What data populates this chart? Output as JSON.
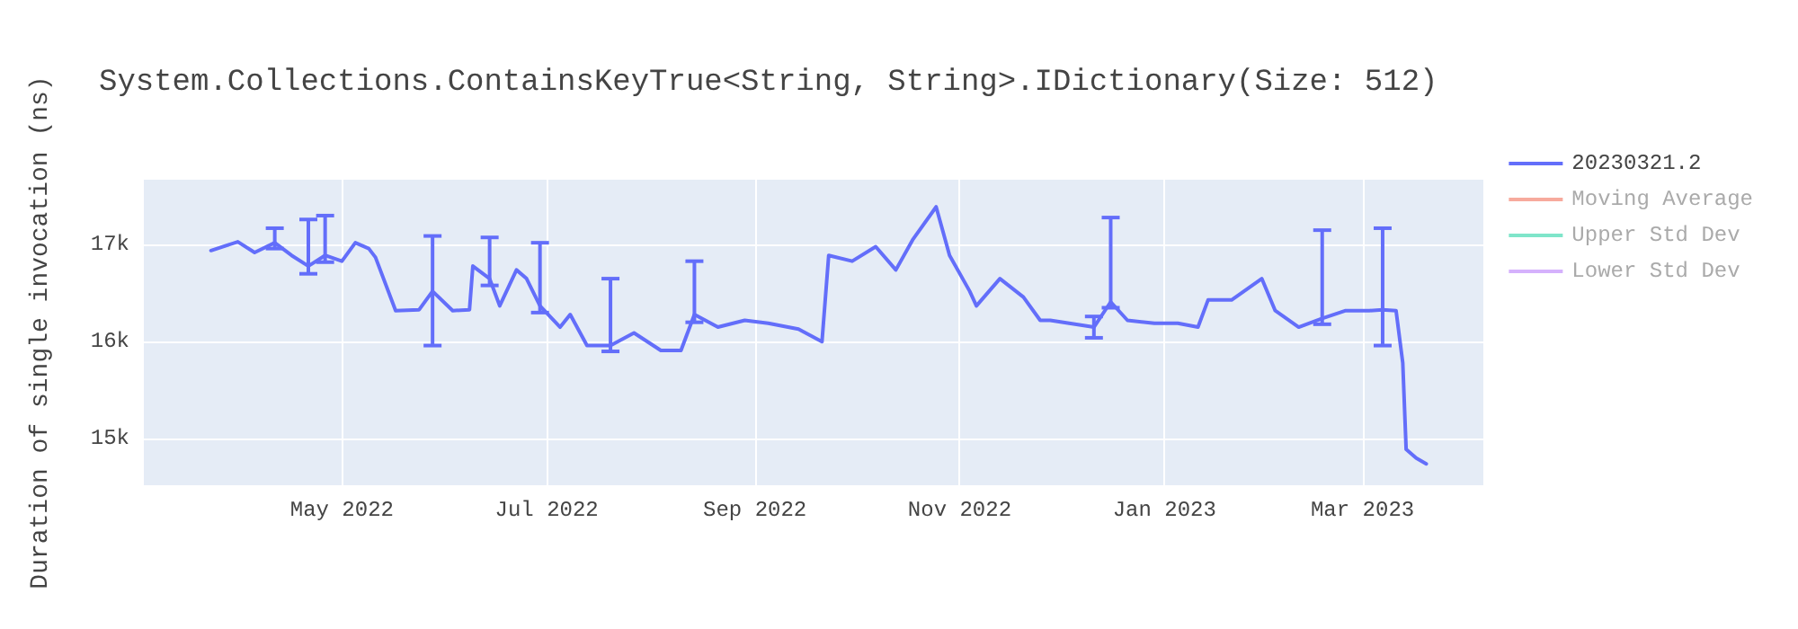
{
  "chart_data": {
    "type": "line",
    "title": "System.Collections.ContainsKeyTrue<String, String>.IDictionary(Size: 512)",
    "ylabel": "Duration of single invocation (ns)",
    "x": [
      "2022-03-23",
      "2022-03-31",
      "2022-04-05",
      "2022-04-11",
      "2022-04-16",
      "2022-04-21",
      "2022-04-26",
      "2022-05-01",
      "2022-05-05",
      "2022-05-09",
      "2022-05-11",
      "2022-05-17",
      "2022-05-24",
      "2022-05-28",
      "2022-06-03",
      "2022-06-08",
      "2022-06-09",
      "2022-06-14",
      "2022-06-17",
      "2022-06-22",
      "2022-06-25",
      "2022-06-29",
      "2022-07-05",
      "2022-07-08",
      "2022-07-13",
      "2022-07-20",
      "2022-07-27",
      "2022-08-04",
      "2022-08-10",
      "2022-08-14",
      "2022-08-21",
      "2022-08-29",
      "2022-09-05",
      "2022-09-14",
      "2022-09-21",
      "2022-09-23",
      "2022-09-30",
      "2022-10-07",
      "2022-10-13",
      "2022-10-18",
      "2022-10-25",
      "2022-10-29",
      "2022-11-04",
      "2022-11-06",
      "2022-11-13",
      "2022-11-20",
      "2022-11-25",
      "2022-11-28",
      "2022-12-11",
      "2022-12-16",
      "2022-12-21",
      "2022-12-29",
      "2023-01-05",
      "2023-01-11",
      "2023-01-14",
      "2023-01-21",
      "2023-01-30",
      "2023-02-03",
      "2023-02-10",
      "2023-02-17",
      "2023-02-24",
      "2023-03-03",
      "2023-03-07",
      "2023-03-11",
      "2023-03-13",
      "2023-03-14",
      "2023-03-17",
      "2023-03-20"
    ],
    "series": [
      {
        "name": "20230321.2",
        "color": "#636efa",
        "values": [
          16940,
          17030,
          16920,
          17020,
          16890,
          16780,
          16890,
          16830,
          17020,
          16960,
          16870,
          16320,
          16330,
          16520,
          16320,
          16330,
          16780,
          16650,
          16370,
          16740,
          16650,
          16370,
          16150,
          16280,
          15960,
          15960,
          16090,
          15910,
          15910,
          16280,
          16150,
          16220,
          16190,
          16130,
          16000,
          16890,
          16830,
          16980,
          16740,
          17050,
          17390,
          16890,
          16520,
          16370,
          16650,
          16460,
          16220,
          16220,
          16150,
          16410,
          16220,
          16190,
          16190,
          16150,
          16430,
          16430,
          16650,
          16320,
          16150,
          16240,
          16320,
          16320,
          16330,
          16320,
          15780,
          14890,
          14800,
          14740
        ],
        "errors": [
          null,
          null,
          null,
          [
            16960,
            17170
          ],
          null,
          [
            16700,
            17260
          ],
          [
            16820,
            17300
          ],
          null,
          null,
          null,
          null,
          null,
          null,
          [
            15960,
            17090
          ],
          null,
          null,
          null,
          [
            16580,
            17075
          ],
          null,
          null,
          null,
          [
            16300,
            17020
          ],
          null,
          null,
          null,
          [
            15900,
            16650
          ],
          null,
          null,
          null,
          [
            16200,
            16830
          ],
          null,
          null,
          null,
          null,
          null,
          null,
          null,
          null,
          null,
          null,
          null,
          null,
          null,
          null,
          null,
          null,
          null,
          null,
          [
            16040,
            16260
          ],
          [
            16350,
            17280
          ],
          null,
          null,
          null,
          null,
          null,
          null,
          null,
          null,
          null,
          [
            16180,
            17150
          ],
          null,
          null,
          [
            15960,
            17170
          ],
          null,
          null,
          null,
          null,
          null
        ]
      },
      {
        "name": "Moving Average",
        "color": "#ef553b",
        "values": [
          null,
          null,
          null,
          null,
          null,
          null,
          null,
          null,
          null,
          null,
          null,
          null,
          null,
          null,
          null,
          null,
          null,
          null,
          null,
          null,
          null,
          null,
          null,
          null,
          null,
          null,
          null,
          null,
          null,
          null,
          null,
          null,
          null,
          null,
          null,
          null,
          null,
          null,
          null,
          null,
          null,
          null,
          null,
          null,
          null,
          null,
          null,
          null,
          null,
          null,
          null,
          null,
          null,
          null,
          null,
          null,
          null,
          null,
          null,
          null,
          null,
          null,
          null,
          null,
          null,
          null,
          null,
          null
        ]
      },
      {
        "name": "Upper Std Dev",
        "color": "#00cc96",
        "values": [
          null,
          null,
          null,
          null,
          null,
          null,
          null,
          null,
          null,
          null,
          null,
          null,
          null,
          null,
          null,
          null,
          null,
          null,
          null,
          null,
          null,
          null,
          null,
          null,
          null,
          null,
          null,
          null,
          null,
          null,
          null,
          null,
          null,
          null,
          null,
          null,
          null,
          null,
          null,
          null,
          null,
          null,
          null,
          null,
          null,
          null,
          null,
          null,
          null,
          null,
          null,
          null,
          null,
          null,
          null,
          null,
          null,
          null,
          null,
          null,
          null,
          null,
          null,
          null,
          null,
          null,
          null,
          null
        ]
      },
      {
        "name": "Lower Std Dev",
        "color": "#ab63fa",
        "values": [
          null,
          null,
          null,
          null,
          null,
          null,
          null,
          null,
          null,
          null,
          null,
          null,
          null,
          null,
          null,
          null,
          null,
          null,
          null,
          null,
          null,
          null,
          null,
          null,
          null,
          null,
          null,
          null,
          null,
          null,
          null,
          null,
          null,
          null,
          null,
          null,
          null,
          null,
          null,
          null,
          null,
          null,
          null,
          null,
          null,
          null,
          null,
          null,
          null,
          null,
          null,
          null,
          null,
          null,
          null,
          null,
          null,
          null,
          null,
          null,
          null,
          null,
          null,
          null,
          null,
          null,
          null,
          null
        ]
      }
    ],
    "xlim": [
      "2022-03-03",
      "2023-04-06"
    ],
    "xticks": [
      {
        "value": "2022-05-01",
        "label": "May 2022"
      },
      {
        "value": "2022-07-01",
        "label": "Jul 2022"
      },
      {
        "value": "2022-09-01",
        "label": "Sep 2022"
      },
      {
        "value": "2022-11-01",
        "label": "Nov 2022"
      },
      {
        "value": "2023-01-01",
        "label": "Jan 2023"
      },
      {
        "value": "2023-03-01",
        "label": "Mar 2023"
      }
    ],
    "ylim": [
      14520,
      17670
    ],
    "yticks": [
      {
        "value": 15000,
        "label": "15k"
      },
      {
        "value": 16000,
        "label": "16k"
      },
      {
        "value": 17000,
        "label": "17k"
      }
    ],
    "grid": true,
    "legend": "right",
    "line_style": "solid"
  }
}
